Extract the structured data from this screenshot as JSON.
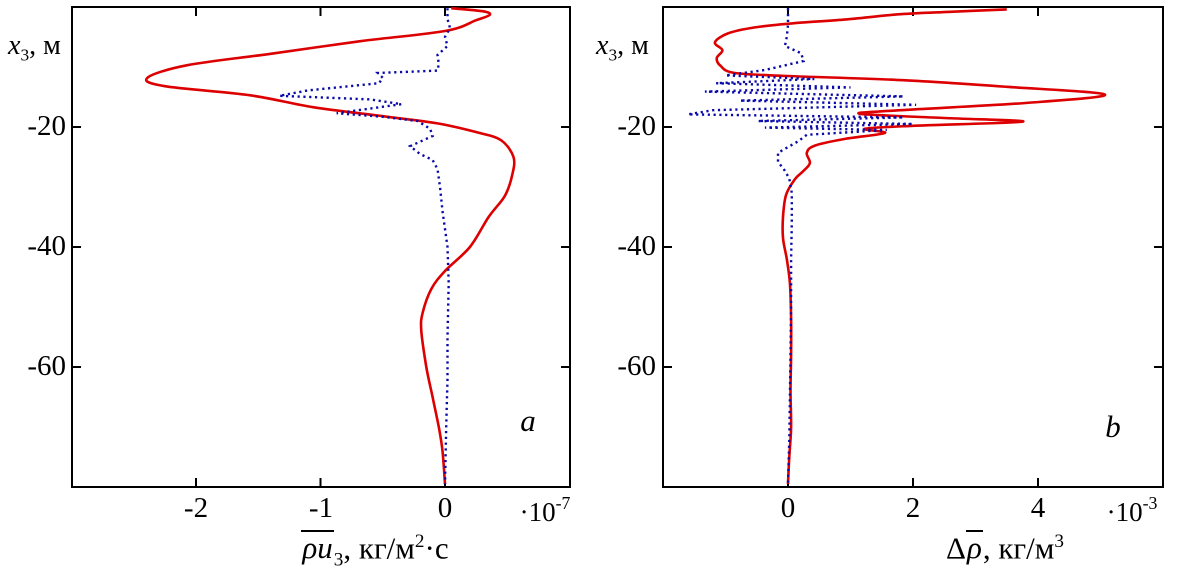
{
  "figure": {
    "background": "#ffffff",
    "frame_color": "#000000"
  },
  "colors": {
    "red_series": "#dd0000",
    "blue_series": "#0a0aaa",
    "text": "#000000"
  },
  "panels": [
    {
      "panel_letter": "a",
      "y_axis_label": {
        "var": "x",
        "sub": "3",
        "unit": ", м"
      },
      "y_tick_labels": [
        "-20",
        "-40",
        "-60"
      ],
      "x_tick_labels": [
        "-2",
        "-1",
        "0"
      ],
      "multiplier": {
        "base": "·10",
        "exp": "-7"
      },
      "x_axis_label": {
        "pre": "",
        "overlined": "ρu",
        "sub": "3",
        "mid": ", кг/м",
        "sup": "2",
        "tail": "·с"
      }
    },
    {
      "panel_letter": "b",
      "y_axis_label": {
        "var": "x",
        "sub": "3",
        "unit": ", м"
      },
      "y_tick_labels": [
        "-20",
        "-40",
        "-60"
      ],
      "x_tick_labels": [
        "0",
        "2",
        "4"
      ],
      "multiplier": {
        "base": "·10",
        "exp": "-3"
      },
      "x_axis_label": {
        "pre": "Δ",
        "overlined": "ρ",
        "sub": "",
        "mid": ", кг/м",
        "sup": "3",
        "tail": ""
      }
    }
  ],
  "chart_data": [
    {
      "type": "line",
      "title": "",
      "xlabel": "ρu₃, кг/м²·с",
      "ylabel": "x₃, м",
      "x_scale": "×10⁻⁷",
      "xlim": [
        -3,
        1
      ],
      "ylim": [
        -80,
        0
      ],
      "x_ticks": [
        -2,
        -1,
        0
      ],
      "y_ticks": [
        -20,
        -40,
        -60
      ],
      "grid": false,
      "legend": "none",
      "series": [
        {
          "name": "red-solid",
          "style": "solid",
          "color": "#dd0000",
          "points": [
            [
              0.05,
              -0.2
            ],
            [
              0.3,
              -0.7
            ],
            [
              0.36,
              -1.3
            ],
            [
              0.25,
              -2.2
            ],
            [
              0.0,
              -4.0
            ],
            [
              -0.68,
              -5.7
            ],
            [
              -1.4,
              -7.8
            ],
            [
              -2.07,
              -9.7
            ],
            [
              -2.39,
              -11.8
            ],
            [
              -2.25,
              -13.2
            ],
            [
              -1.57,
              -14.7
            ],
            [
              -1.06,
              -16.7
            ],
            [
              -0.5,
              -18.2
            ],
            [
              -0.06,
              -19.4
            ],
            [
              0.26,
              -20.9
            ],
            [
              0.45,
              -22.2
            ],
            [
              0.55,
              -25.0
            ],
            [
              0.54,
              -28.0
            ],
            [
              0.48,
              -31.5
            ],
            [
              0.35,
              -35.0
            ],
            [
              0.2,
              -40.0
            ],
            [
              0.0,
              -44.0
            ],
            [
              -0.11,
              -47.0
            ],
            [
              -0.18,
              -51.0
            ],
            [
              -0.19,
              -54.0
            ],
            [
              -0.15,
              -60.0
            ],
            [
              -0.1,
              -65.0
            ],
            [
              -0.05,
              -70.0
            ],
            [
              -0.02,
              -74.0
            ],
            [
              0.0,
              -79.5
            ]
          ]
        },
        {
          "name": "blue-dotted",
          "style": "dotted",
          "color": "#0a0aaa",
          "points": [
            [
              0.02,
              -0.2
            ],
            [
              0.02,
              -2.0
            ],
            [
              0.04,
              -3.5
            ],
            [
              0.0,
              -5.0
            ],
            [
              0.02,
              -6.5
            ],
            [
              -0.06,
              -8.0
            ],
            [
              -0.05,
              -9.5
            ],
            [
              -0.06,
              -10.6
            ],
            [
              -0.54,
              -11.0
            ],
            [
              -0.5,
              -11.8
            ],
            [
              -0.53,
              -12.7
            ],
            [
              -1.1,
              -13.9
            ],
            [
              -1.33,
              -14.8
            ],
            [
              -0.6,
              -15.4
            ],
            [
              -0.35,
              -16.2
            ],
            [
              -0.87,
              -17.7
            ],
            [
              -0.5,
              -18.3
            ],
            [
              -0.22,
              -19.0
            ],
            [
              -0.12,
              -20.3
            ],
            [
              -0.1,
              -21.5
            ],
            [
              -0.28,
              -23.2
            ],
            [
              -0.2,
              -24.5
            ],
            [
              -0.1,
              -25.5
            ],
            [
              -0.06,
              -27.0
            ],
            [
              -0.04,
              -30.0
            ],
            [
              -0.02,
              -34.0
            ],
            [
              0.02,
              -40.0
            ],
            [
              0.03,
              -46.0
            ],
            [
              0.02,
              -55.0
            ],
            [
              0.02,
              -62.0
            ],
            [
              0.01,
              -70.0
            ],
            [
              0.0,
              -79.5
            ]
          ]
        }
      ]
    },
    {
      "type": "line",
      "title": "",
      "xlabel": "Δρ, кг/м³",
      "ylabel": "x₃, м",
      "x_scale": "×10⁻³",
      "xlim": [
        -2,
        6
      ],
      "ylim": [
        -80,
        0
      ],
      "x_ticks": [
        0,
        2,
        4
      ],
      "y_ticks": [
        -20,
        -40,
        -60
      ],
      "grid": false,
      "legend": "none",
      "series": [
        {
          "name": "red-solid",
          "style": "solid",
          "color": "#dd0000",
          "points": [
            [
              3.5,
              -0.4
            ],
            [
              2.6,
              -0.8
            ],
            [
              1.8,
              -1.2
            ],
            [
              0.9,
              -2.1
            ],
            [
              0.1,
              -2.7
            ],
            [
              -0.53,
              -3.4
            ],
            [
              -0.96,
              -4.4
            ],
            [
              -1.17,
              -5.9
            ],
            [
              -1.05,
              -7.2
            ],
            [
              -1.14,
              -8.5
            ],
            [
              -1.08,
              -9.8
            ],
            [
              -0.85,
              -11.0
            ],
            [
              0.0,
              -11.5
            ],
            [
              1.84,
              -12.2
            ],
            [
              3.5,
              -13.3
            ],
            [
              5.07,
              -14.6
            ],
            [
              3.8,
              -16.0
            ],
            [
              1.8,
              -17.2
            ],
            [
              1.15,
              -17.8
            ],
            [
              2.5,
              -18.5
            ],
            [
              3.76,
              -19.1
            ],
            [
              2.0,
              -19.8
            ],
            [
              1.23,
              -20.3
            ],
            [
              1.55,
              -21.0
            ],
            [
              0.9,
              -22.0
            ],
            [
              0.43,
              -23.1
            ],
            [
              0.3,
              -24.3
            ],
            [
              0.35,
              -26.0
            ],
            [
              0.24,
              -27.4
            ],
            [
              0.11,
              -28.7
            ],
            [
              -0.03,
              -31.3
            ],
            [
              -0.08,
              -35.0
            ],
            [
              -0.08,
              -38.5
            ],
            [
              -0.02,
              -42.0
            ],
            [
              0.03,
              -46.0
            ],
            [
              0.05,
              -52.0
            ],
            [
              0.05,
              -58.0
            ],
            [
              0.04,
              -64.0
            ],
            [
              0.05,
              -70.0
            ],
            [
              0.02,
              -75.0
            ],
            [
              0.0,
              -79.5
            ]
          ]
        },
        {
          "name": "blue-dotted",
          "style": "dotted",
          "color": "#0a0aaa",
          "points": [
            [
              0.0,
              -0.2
            ],
            [
              0.0,
              -3.0
            ],
            [
              -0.02,
              -5.0
            ],
            [
              -0.05,
              -6.5
            ],
            [
              0.21,
              -7.7
            ],
            [
              0.25,
              -9.0
            ],
            [
              -0.37,
              -10.5
            ],
            [
              -1.0,
              -11.4
            ],
            [
              0.42,
              -12.0
            ],
            [
              -1.15,
              -12.7
            ],
            [
              1.0,
              -13.4
            ],
            [
              -1.33,
              -14.1
            ],
            [
              1.85,
              -14.9
            ],
            [
              -0.77,
              -15.6
            ],
            [
              2.05,
              -16.3
            ],
            [
              -1.2,
              -17.2
            ],
            [
              -1.6,
              -17.9
            ],
            [
              1.85,
              -18.4
            ],
            [
              -0.48,
              -19.0
            ],
            [
              2.0,
              -19.5
            ],
            [
              -0.37,
              -20.1
            ],
            [
              1.58,
              -20.5
            ],
            [
              0.3,
              -21.3
            ],
            [
              0.16,
              -22.4
            ],
            [
              -0.16,
              -24.3
            ],
            [
              -0.16,
              -25.8
            ],
            [
              -0.05,
              -27.3
            ],
            [
              0.02,
              -28.6
            ],
            [
              0.06,
              -31.0
            ],
            [
              0.06,
              -36.0
            ],
            [
              0.05,
              -42.0
            ],
            [
              0.05,
              -50.0
            ],
            [
              0.04,
              -58.0
            ],
            [
              0.03,
              -65.0
            ],
            [
              0.02,
              -72.0
            ],
            [
              0.0,
              -79.5
            ]
          ]
        }
      ]
    }
  ]
}
